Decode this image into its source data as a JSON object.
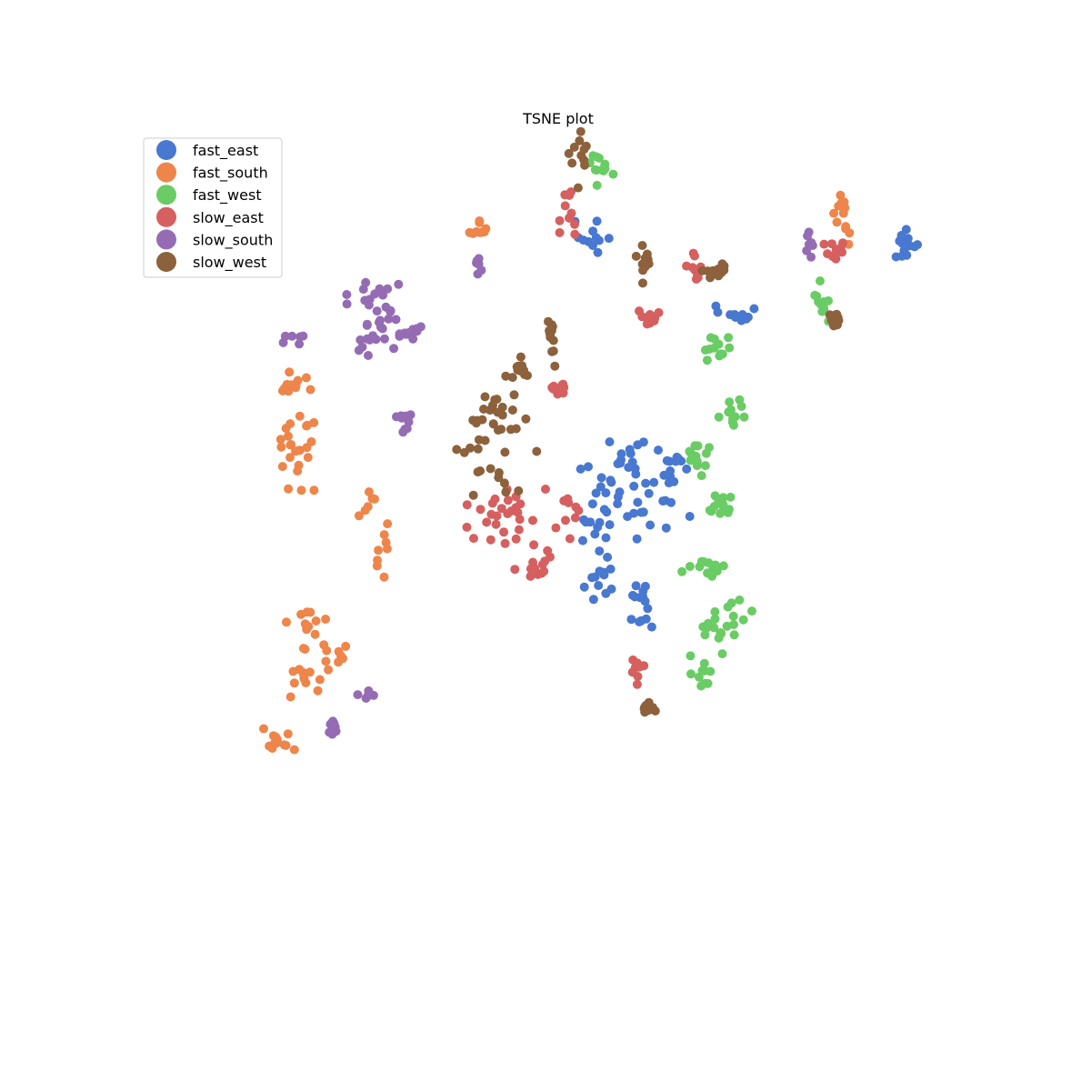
{
  "chart_data": {
    "type": "scatter",
    "title": "TSNE plot",
    "xlabel": "",
    "ylabel": "",
    "axes_visible": false,
    "grid": false,
    "legend_position": "top-left",
    "xlim": [
      0,
      100
    ],
    "ylim": [
      0,
      100
    ],
    "series": [
      {
        "name": "fast_east",
        "color": "#4878d0",
        "clusters": [
          {
            "c": [
              54.2,
              89.9
            ],
            "spread": [
              1.1,
              1.0
            ],
            "n": 11,
            "seed": 11
          },
          {
            "c": [
              94.2,
              89.5
            ],
            "spread": [
              1.0,
              1.3
            ],
            "n": 13,
            "seed": 12
          },
          {
            "c": [
              72.8,
              80.3
            ],
            "spread": [
              1.3,
              0.5
            ],
            "n": 10,
            "seed": 13
          },
          {
            "c": [
              60.0,
              62.3
            ],
            "spread": [
              0.7,
              1.6
            ],
            "n": 9,
            "seed": 14
          },
          {
            "c": [
              64.6,
              61.0
            ],
            "spread": [
              1.3,
              1.6
            ],
            "n": 14,
            "seed": 15
          },
          {
            "c": [
              56.7,
              59.3
            ],
            "spread": [
              2.0,
              2.6
            ],
            "n": 20,
            "seed": 16
          },
          {
            "c": [
              62.5,
              55.8
            ],
            "spread": [
              2.0,
              2.2
            ],
            "n": 12,
            "seed": 17
          },
          {
            "c": [
              55.2,
              52.8
            ],
            "spread": [
              1.0,
              1.2
            ],
            "n": 11,
            "seed": 18
          },
          {
            "c": [
              55.6,
              46.3
            ],
            "spread": [
              1.2,
              1.4
            ],
            "n": 12,
            "seed": 19
          },
          {
            "c": [
              60.6,
              43.1
            ],
            "spread": [
              0.7,
              1.2
            ],
            "n": 14,
            "seed": 20
          }
        ]
      },
      {
        "name": "fast_south",
        "color": "#ee854a",
        "clusters": [
          {
            "c": [
              40.1,
              91.4
            ],
            "spread": [
              0.6,
              0.8
            ],
            "n": 9,
            "seed": 21
          },
          {
            "c": [
              86.1,
              93.0
            ],
            "spread": [
              0.5,
              1.8
            ],
            "n": 12,
            "seed": 22
          },
          {
            "c": [
              15.5,
              71.5
            ],
            "spread": [
              1.2,
              0.9
            ],
            "n": 10,
            "seed": 23
          },
          {
            "c": [
              17.5,
              64.5
            ],
            "spread": [
              1.4,
              3.0
            ],
            "n": 25,
            "seed": 24
          },
          {
            "c": [
              25.5,
              56.2
            ],
            "spread": [
              0.6,
              1.1
            ],
            "n": 6,
            "seed": 25
          },
          {
            "c": [
              28.0,
              50.5
            ],
            "spread": [
              0.4,
              2.0
            ],
            "n": 8,
            "seed": 26
          },
          {
            "c": [
              18.5,
              41.0
            ],
            "spread": [
              1.4,
              1.2
            ],
            "n": 10,
            "seed": 27
          },
          {
            "c": [
              18.0,
              34.8
            ],
            "spread": [
              1.4,
              1.6
            ],
            "n": 14,
            "seed": 28
          },
          {
            "c": [
              21.5,
              37.2
            ],
            "spread": [
              1.0,
              1.0
            ],
            "n": 9,
            "seed": 29
          },
          {
            "c": [
              14.7,
              26.0
            ],
            "spread": [
              0.9,
              1.2
            ],
            "n": 12,
            "seed": 30
          }
        ]
      },
      {
        "name": "fast_west",
        "color": "#6acc64",
        "clusters": [
          {
            "c": [
              55.8,
              99.3
            ],
            "spread": [
              0.8,
              1.2
            ],
            "n": 12,
            "seed": 31
          },
          {
            "c": [
              83.9,
              82.0
            ],
            "spread": [
              0.7,
              1.2
            ],
            "n": 12,
            "seed": 32
          },
          {
            "c": [
              70.3,
              76.2
            ],
            "spread": [
              0.9,
              1.2
            ],
            "n": 12,
            "seed": 33
          },
          {
            "c": [
              72.8,
              67.3
            ],
            "spread": [
              1.0,
              1.2
            ],
            "n": 11,
            "seed": 34
          },
          {
            "c": [
              68.0,
              62.2
            ],
            "spread": [
              0.7,
              1.5
            ],
            "n": 12,
            "seed": 35
          },
          {
            "c": [
              70.6,
              56.2
            ],
            "spread": [
              0.7,
              1.4
            ],
            "n": 12,
            "seed": 36
          },
          {
            "c": [
              68.7,
              48.3
            ],
            "spread": [
              1.5,
              0.7
            ],
            "n": 14,
            "seed": 37
          },
          {
            "c": [
              71.5,
              41.5
            ],
            "spread": [
              1.5,
              2.0
            ],
            "n": 20,
            "seed": 38
          },
          {
            "c": [
              68.2,
              34.5
            ],
            "spread": [
              0.6,
              1.2
            ],
            "n": 10,
            "seed": 39
          }
        ]
      },
      {
        "name": "slow_east",
        "color": "#d65f5f",
        "clusters": [
          {
            "c": [
              51.6,
              92.3
            ],
            "spread": [
              0.6,
              2.2
            ],
            "n": 10,
            "seed": 41
          },
          {
            "c": [
              67.8,
              85.8
            ],
            "spread": [
              0.6,
              1.2
            ],
            "n": 10,
            "seed": 42
          },
          {
            "c": [
              85.3,
              88.2
            ],
            "spread": [
              0.6,
              0.7
            ],
            "n": 10,
            "seed": 43
          },
          {
            "c": [
              62.0,
              79.5
            ],
            "spread": [
              0.7,
              0.8
            ],
            "n": 13,
            "seed": 44
          },
          {
            "c": [
              50.2,
              71.0
            ],
            "spread": [
              0.6,
              0.7
            ],
            "n": 10,
            "seed": 45
          },
          {
            "c": [
              43.5,
              54.0
            ],
            "spread": [
              2.3,
              2.8
            ],
            "n": 30,
            "seed": 46
          },
          {
            "c": [
              51.0,
              55.0
            ],
            "spread": [
              0.8,
              1.5
            ],
            "n": 9,
            "seed": 47
          },
          {
            "c": [
              48.5,
              48.0
            ],
            "spread": [
              1.0,
              1.0
            ],
            "n": 11,
            "seed": 48
          },
          {
            "c": [
              60.2,
              35.0
            ],
            "spread": [
              0.7,
              1.0
            ],
            "n": 9,
            "seed": 49
          }
        ]
      },
      {
        "name": "slow_south",
        "color": "#956cb4",
        "clusters": [
          {
            "c": [
              82.3,
              89.0
            ],
            "spread": [
              0.4,
              0.9
            ],
            "n": 8,
            "seed": 51
          },
          {
            "c": [
              40.0,
              86.2
            ],
            "spread": [
              0.4,
              0.8
            ],
            "n": 7,
            "seed": 52
          },
          {
            "c": [
              26.8,
              82.0
            ],
            "spread": [
              1.6,
              1.9
            ],
            "n": 22,
            "seed": 53
          },
          {
            "c": [
              31.6,
              77.8
            ],
            "spread": [
              0.5,
              0.6
            ],
            "n": 9,
            "seed": 54
          },
          {
            "c": [
              16.8,
              77.0
            ],
            "spread": [
              0.8,
              0.5
            ],
            "n": 6,
            "seed": 55
          },
          {
            "c": [
              26.7,
              76.2
            ],
            "spread": [
              1.5,
              1.5
            ],
            "n": 14,
            "seed": 56
          },
          {
            "c": [
              30.5,
              66.5
            ],
            "spread": [
              0.5,
              0.8
            ],
            "n": 9,
            "seed": 57
          },
          {
            "c": [
              26.0,
              31.5
            ],
            "spread": [
              0.6,
              0.6
            ],
            "n": 7,
            "seed": 58
          },
          {
            "c": [
              21.8,
              27.5
            ],
            "spread": [
              0.4,
              0.8
            ],
            "n": 7,
            "seed": 59
          }
        ]
      },
      {
        "name": "slow_west",
        "color": "#8c613c",
        "clusters": [
          {
            "c": [
              52.8,
              100.3
            ],
            "spread": [
              0.6,
              1.8
            ],
            "n": 11,
            "seed": 61
          },
          {
            "c": [
              61.4,
              86.9
            ],
            "spread": [
              0.6,
              1.4
            ],
            "n": 11,
            "seed": 62
          },
          {
            "c": [
              70.0,
              85.5
            ],
            "spread": [
              0.9,
              0.7
            ],
            "n": 12,
            "seed": 63
          },
          {
            "c": [
              85.5,
              79.3
            ],
            "spread": [
              0.4,
              0.8
            ],
            "n": 9,
            "seed": 64
          },
          {
            "c": [
              49.3,
              77.2
            ],
            "spread": [
              0.4,
              1.6
            ],
            "n": 12,
            "seed": 65
          },
          {
            "c": [
              45.5,
              73.0
            ],
            "spread": [
              0.7,
              0.9
            ],
            "n": 10,
            "seed": 66
          },
          {
            "c": [
              42.0,
              66.0
            ],
            "spread": [
              2.8,
              4.5
            ],
            "n": 42,
            "seed": 67
          },
          {
            "c": [
              61.5,
              30.3
            ],
            "spread": [
              0.5,
              0.7
            ],
            "n": 10,
            "seed": 68
          }
        ]
      }
    ]
  }
}
